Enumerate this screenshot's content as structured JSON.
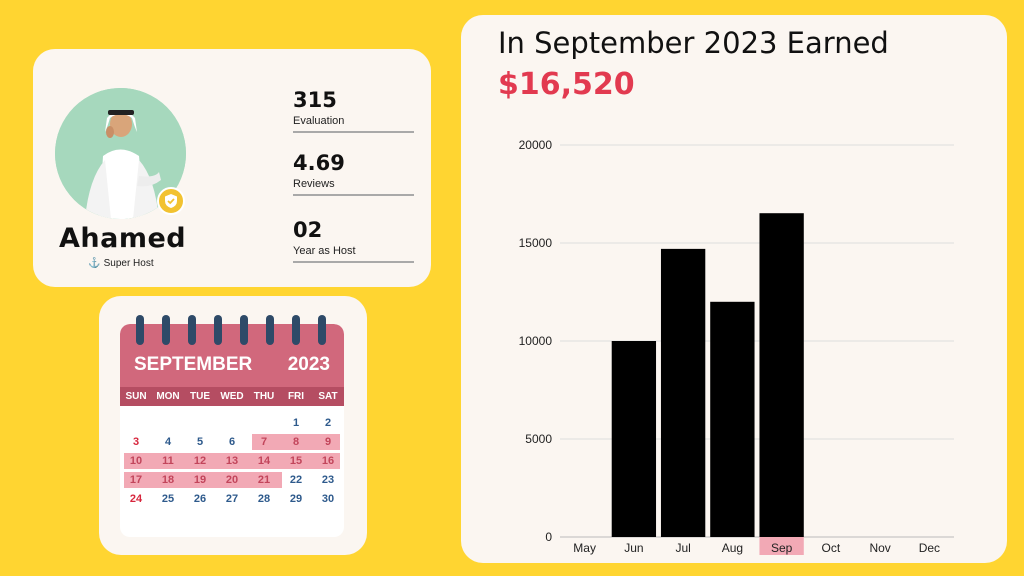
{
  "profile": {
    "name": "Ahamed",
    "tag": "Super Host",
    "stats": [
      {
        "value": "315",
        "label": "Evaluation"
      },
      {
        "value": "4.69",
        "label": "Reviews"
      },
      {
        "value": "02",
        "label": "Year as Host"
      }
    ],
    "colors": {
      "avatar_bg": "#A6D8BD",
      "badge": "#F2C230"
    }
  },
  "calendar": {
    "month": "SEPTEMBER",
    "year": "2023",
    "weekdays": [
      "SUN",
      "MON",
      "TUE",
      "WED",
      "THU",
      "FRI",
      "SAT"
    ],
    "weeks": [
      [
        "",
        "",
        "",
        "",
        "",
        "1",
        "2"
      ],
      [
        "3",
        "4",
        "5",
        "6",
        "7",
        "8",
        "9"
      ],
      [
        "10",
        "11",
        "12",
        "13",
        "14",
        "15",
        "16"
      ],
      [
        "17",
        "18",
        "19",
        "20",
        "21",
        "22",
        "23"
      ],
      [
        "24",
        "25",
        "26",
        "27",
        "28",
        "29",
        "30"
      ]
    ],
    "highlighted_days": [
      "7",
      "8",
      "9",
      "10",
      "11",
      "12",
      "13",
      "14",
      "15",
      "16",
      "17",
      "18",
      "19",
      "20",
      "21"
    ]
  },
  "chart": {
    "title": "In September 2023 Earned",
    "amount": "$16,520"
  },
  "chart_data": {
    "type": "bar",
    "categories": [
      "May",
      "Jun",
      "Jul",
      "Aug",
      "Sep",
      "Oct",
      "Nov",
      "Dec"
    ],
    "values": [
      0,
      10000,
      14700,
      12000,
      16520,
      0,
      0,
      0
    ],
    "highlighted_category": "Sep",
    "yticks": [
      0,
      5000,
      10000,
      15000,
      20000
    ],
    "ylim": [
      0,
      20000
    ],
    "grid": true,
    "bar_color": "#000000",
    "highlight_color": "#F2A9B5"
  }
}
